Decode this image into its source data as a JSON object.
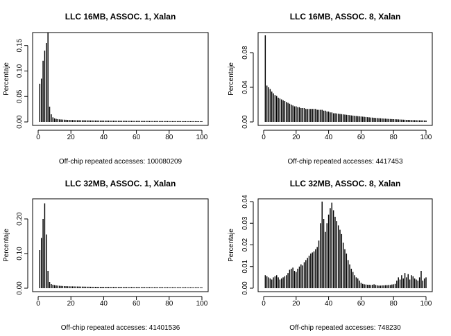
{
  "chart_data": [
    {
      "type": "bar",
      "title": "LLC 16MB, ASSOC. 1, Xalan",
      "xlabel": "Off-chip repeated accesses: 100080209",
      "ylabel": "Percentaje",
      "xlim": [
        0,
        100
      ],
      "ylim": [
        0,
        0.17
      ],
      "xticks": [
        0,
        20,
        40,
        60,
        80,
        100
      ],
      "yticks": [
        0.0,
        0.05,
        0.1,
        0.15
      ],
      "ytick_labels": [
        "0.00",
        "0.05",
        "0.10",
        "0.15"
      ],
      "x": [
        1,
        2,
        3,
        4,
        5,
        6,
        7,
        8,
        9,
        10,
        11,
        12,
        13,
        14,
        15,
        16,
        17,
        18,
        19,
        20,
        21,
        22,
        23,
        24,
        25,
        26,
        27,
        28,
        29,
        30,
        31,
        32,
        33,
        34,
        35,
        36,
        37,
        38,
        39,
        40,
        41,
        42,
        43,
        44,
        45,
        46,
        47,
        48,
        49,
        50,
        51,
        52,
        53,
        54,
        55,
        56,
        57,
        58,
        59,
        60,
        61,
        62,
        63,
        64,
        65,
        66,
        67,
        68,
        69,
        70,
        71,
        72,
        73,
        74,
        75,
        76,
        77,
        78,
        79,
        80,
        81,
        82,
        83,
        84,
        85,
        86,
        87,
        88,
        89,
        90,
        91,
        92,
        93,
        94,
        95,
        96,
        97,
        98,
        99,
        100
      ],
      "values": [
        0.075,
        0.085,
        0.12,
        0.14,
        0.155,
        0.175,
        0.03,
        0.015,
        0.009,
        0.007,
        0.006,
        0.0055,
        0.005,
        0.0048,
        0.0046,
        0.0044,
        0.0042,
        0.004,
        0.0039,
        0.0038,
        0.0037,
        0.0036,
        0.0035,
        0.0034,
        0.0034,
        0.0033,
        0.0032,
        0.0032,
        0.0031,
        0.003,
        0.003,
        0.0029,
        0.0029,
        0.0028,
        0.0028,
        0.0027,
        0.0027,
        0.0026,
        0.0026,
        0.0026,
        0.0025,
        0.0025,
        0.0025,
        0.0024,
        0.0024,
        0.0024,
        0.0023,
        0.0023,
        0.0023,
        0.0022,
        0.0022,
        0.0022,
        0.0022,
        0.0021,
        0.0021,
        0.0021,
        0.0021,
        0.002,
        0.002,
        0.002,
        0.002,
        0.002,
        0.0019,
        0.0019,
        0.0019,
        0.0019,
        0.0019,
        0.0018,
        0.0018,
        0.0018,
        0.0018,
        0.0018,
        0.0018,
        0.0017,
        0.0017,
        0.0017,
        0.0017,
        0.0017,
        0.0017,
        0.0016,
        0.0016,
        0.0016,
        0.0016,
        0.0016,
        0.0016,
        0.0016,
        0.0016,
        0.0015,
        0.0015,
        0.0015,
        0.0015,
        0.0015,
        0.0015,
        0.0015,
        0.0015,
        0.0015,
        0.0014,
        0.0014,
        0.0014,
        0.0014
      ]
    },
    {
      "type": "bar",
      "title": "LLC 16MB, ASSOC. 8, Xalan",
      "xlabel": "Off-chip repeated accesses: 4417453",
      "ylabel": "Percentaje",
      "xlim": [
        0,
        100
      ],
      "ylim": [
        0,
        0.1
      ],
      "xticks": [
        0,
        20,
        40,
        60,
        80,
        100
      ],
      "yticks": [
        0.0,
        0.04,
        0.08
      ],
      "ytick_labels": [
        "0.00",
        "0.04",
        "0.08"
      ],
      "x": [
        1,
        2,
        3,
        4,
        5,
        6,
        7,
        8,
        9,
        10,
        11,
        12,
        13,
        14,
        15,
        16,
        17,
        18,
        19,
        20,
        21,
        22,
        23,
        24,
        25,
        26,
        27,
        28,
        29,
        30,
        31,
        32,
        33,
        34,
        35,
        36,
        37,
        38,
        39,
        40,
        41,
        42,
        43,
        44,
        45,
        46,
        47,
        48,
        49,
        50,
        51,
        52,
        53,
        54,
        55,
        56,
        57,
        58,
        59,
        60,
        61,
        62,
        63,
        64,
        65,
        66,
        67,
        68,
        69,
        70,
        71,
        72,
        73,
        74,
        75,
        76,
        77,
        78,
        79,
        80,
        81,
        82,
        83,
        84,
        85,
        86,
        87,
        88,
        89,
        90,
        91,
        92,
        93,
        94,
        95,
        96,
        97,
        98,
        99,
        100
      ],
      "values": [
        0.1,
        0.042,
        0.04,
        0.038,
        0.035,
        0.033,
        0.031,
        0.03,
        0.028,
        0.027,
        0.026,
        0.025,
        0.024,
        0.023,
        0.022,
        0.021,
        0.02,
        0.019,
        0.018,
        0.018,
        0.017,
        0.017,
        0.016,
        0.016,
        0.016,
        0.015,
        0.015,
        0.015,
        0.015,
        0.015,
        0.015,
        0.015,
        0.014,
        0.014,
        0.014,
        0.014,
        0.013,
        0.013,
        0.012,
        0.012,
        0.011,
        0.011,
        0.01,
        0.01,
        0.0098,
        0.0095,
        0.0092,
        0.009,
        0.0087,
        0.0085,
        0.0082,
        0.008,
        0.0078,
        0.0075,
        0.0073,
        0.0071,
        0.0069,
        0.0067,
        0.0065,
        0.0063,
        0.0061,
        0.0059,
        0.0057,
        0.0055,
        0.0053,
        0.0051,
        0.005,
        0.0048,
        0.0046,
        0.0045,
        0.0043,
        0.0042,
        0.004,
        0.0039,
        0.0038,
        0.0036,
        0.0035,
        0.0034,
        0.0033,
        0.0032,
        0.0031,
        0.003,
        0.0029,
        0.0028,
        0.0027,
        0.0026,
        0.0025,
        0.0024,
        0.0024,
        0.0023,
        0.0022,
        0.0021,
        0.0021,
        0.002,
        0.0019,
        0.0019,
        0.0018,
        0.0018,
        0.0017,
        0.0016
      ]
    },
    {
      "type": "bar",
      "title": "LLC 32MB, ASSOC. 1, Xalan",
      "xlabel": "Off-chip repeated accesses: 41401536",
      "ylabel": "Percentaje",
      "xlim": [
        0,
        100
      ],
      "ylim": [
        0,
        0.25
      ],
      "xticks": [
        0,
        20,
        40,
        60,
        80,
        100
      ],
      "yticks": [
        0.0,
        0.1,
        0.2
      ],
      "ytick_labels": [
        "0.00",
        "0.10",
        "0.20"
      ],
      "x": [
        1,
        2,
        3,
        4,
        5,
        6,
        7,
        8,
        9,
        10,
        11,
        12,
        13,
        14,
        15,
        16,
        17,
        18,
        19,
        20,
        21,
        22,
        23,
        24,
        25,
        26,
        27,
        28,
        29,
        30,
        31,
        32,
        33,
        34,
        35,
        36,
        37,
        38,
        39,
        40,
        41,
        42,
        43,
        44,
        45,
        46,
        47,
        48,
        49,
        50,
        51,
        52,
        53,
        54,
        55,
        56,
        57,
        58,
        59,
        60,
        61,
        62,
        63,
        64,
        65,
        66,
        67,
        68,
        69,
        70,
        71,
        72,
        73,
        74,
        75,
        76,
        77,
        78,
        79,
        80,
        81,
        82,
        83,
        84,
        85,
        86,
        87,
        88,
        89,
        90,
        91,
        92,
        93,
        94,
        95,
        96,
        97,
        98,
        99,
        100
      ],
      "values": [
        0.11,
        0.145,
        0.2,
        0.245,
        0.155,
        0.05,
        0.018,
        0.012,
        0.01,
        0.009,
        0.008,
        0.0075,
        0.007,
        0.0066,
        0.0063,
        0.006,
        0.0058,
        0.0056,
        0.0054,
        0.0053,
        0.0052,
        0.0051,
        0.005,
        0.0049,
        0.0048,
        0.0047,
        0.0046,
        0.0045,
        0.0044,
        0.0043,
        0.0043,
        0.0042,
        0.0041,
        0.0041,
        0.004,
        0.004,
        0.0039,
        0.0039,
        0.0038,
        0.0038,
        0.0037,
        0.0037,
        0.0036,
        0.0036,
        0.0035,
        0.0035,
        0.0035,
        0.0034,
        0.0034,
        0.0034,
        0.0033,
        0.0033,
        0.0033,
        0.0032,
        0.0032,
        0.0032,
        0.0032,
        0.0031,
        0.0031,
        0.0031,
        0.0031,
        0.003,
        0.003,
        0.003,
        0.003,
        0.003,
        0.0029,
        0.0029,
        0.0029,
        0.0029,
        0.0029,
        0.0028,
        0.0028,
        0.0028,
        0.0028,
        0.0028,
        0.0028,
        0.0027,
        0.0027,
        0.0027,
        0.0027,
        0.0027,
        0.0027,
        0.0026,
        0.0026,
        0.0026,
        0.0026,
        0.0026,
        0.0026,
        0.0026,
        0.0025,
        0.0025,
        0.0025,
        0.0025,
        0.0025,
        0.0025,
        0.0025,
        0.0025,
        0.0024,
        0.0024
      ]
    },
    {
      "type": "bar",
      "title": "LLC 32MB, ASSOC. 8, Xalan",
      "xlabel": "Off-chip repeated accesses: 748230",
      "ylabel": "Percentaje",
      "xlim": [
        0,
        100
      ],
      "ylim": [
        0,
        0.04
      ],
      "xticks": [
        0,
        20,
        40,
        60,
        80,
        100
      ],
      "yticks": [
        0.0,
        0.01,
        0.02,
        0.03,
        0.04
      ],
      "ytick_labels": [
        "0.00",
        "0.01",
        "0.02",
        "0.03",
        "0.04"
      ],
      "x": [
        1,
        2,
        3,
        4,
        5,
        6,
        7,
        8,
        9,
        10,
        11,
        12,
        13,
        14,
        15,
        16,
        17,
        18,
        19,
        20,
        21,
        22,
        23,
        24,
        25,
        26,
        27,
        28,
        29,
        30,
        31,
        32,
        33,
        34,
        35,
        36,
        37,
        38,
        39,
        40,
        41,
        42,
        43,
        44,
        45,
        46,
        47,
        48,
        49,
        50,
        51,
        52,
        53,
        54,
        55,
        56,
        57,
        58,
        59,
        60,
        61,
        62,
        63,
        64,
        65,
        66,
        67,
        68,
        69,
        70,
        71,
        72,
        73,
        74,
        75,
        76,
        77,
        78,
        79,
        80,
        81,
        82,
        83,
        84,
        85,
        86,
        87,
        88,
        89,
        90,
        91,
        92,
        93,
        94,
        95,
        96,
        97,
        98,
        99,
        100
      ],
      "values": [
        0.006,
        0.0055,
        0.005,
        0.0045,
        0.004,
        0.005,
        0.0055,
        0.006,
        0.005,
        0.004,
        0.0045,
        0.005,
        0.0055,
        0.006,
        0.007,
        0.0085,
        0.009,
        0.0095,
        0.008,
        0.0075,
        0.009,
        0.01,
        0.011,
        0.0105,
        0.012,
        0.013,
        0.014,
        0.015,
        0.016,
        0.0165,
        0.017,
        0.018,
        0.019,
        0.022,
        0.03,
        0.04,
        0.032,
        0.026,
        0.03,
        0.034,
        0.037,
        0.0395,
        0.036,
        0.033,
        0.031,
        0.029,
        0.027,
        0.025,
        0.021,
        0.018,
        0.016,
        0.013,
        0.011,
        0.009,
        0.0075,
        0.006,
        0.005,
        0.0045,
        0.0035,
        0.0025,
        0.002,
        0.0018,
        0.0017,
        0.0016,
        0.0016,
        0.0015,
        0.0016,
        0.0018,
        0.0015,
        0.0013,
        0.0012,
        0.0012,
        0.0013,
        0.0013,
        0.0014,
        0.0014,
        0.0015,
        0.0015,
        0.0017,
        0.0018,
        0.002,
        0.0035,
        0.005,
        0.004,
        0.006,
        0.0045,
        0.007,
        0.005,
        0.0065,
        0.004,
        0.006,
        0.0055,
        0.0045,
        0.004,
        0.0035,
        0.005,
        0.008,
        0.0035,
        0.0045,
        0.005
      ]
    }
  ]
}
